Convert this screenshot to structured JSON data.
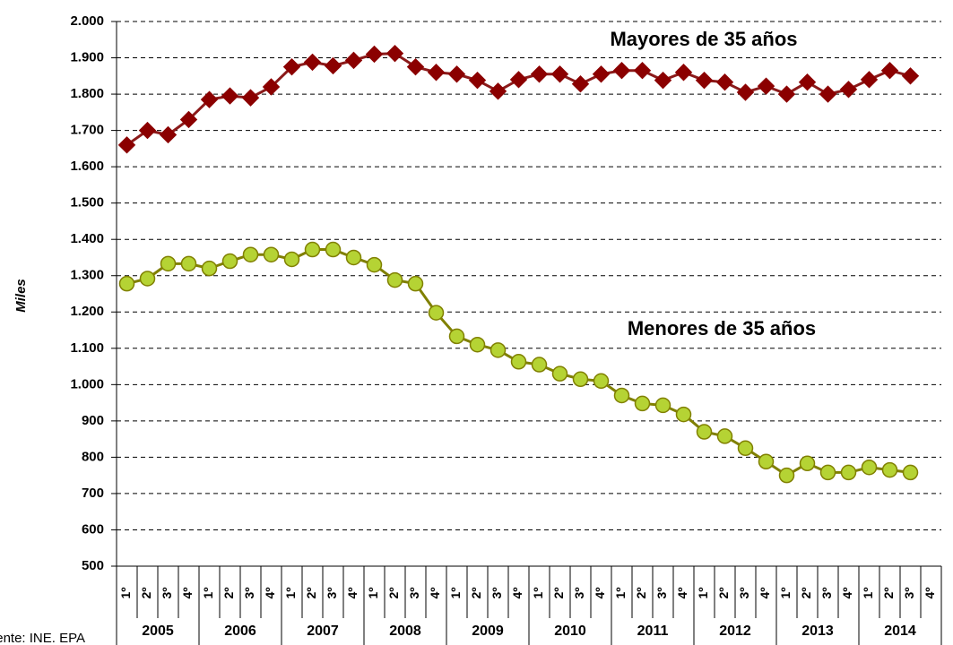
{
  "chart_data": {
    "type": "line",
    "y_label": "Miles",
    "source": "Fuente: INE. EPA",
    "categories": [
      "1º",
      "2º",
      "3º",
      "4º",
      "1º",
      "2º",
      "3º",
      "4º",
      "1º",
      "2º",
      "3º",
      "4º",
      "1º",
      "2º",
      "3º",
      "4º",
      "1º",
      "2º",
      "3º",
      "4º",
      "1º",
      "2º",
      "3º",
      "4º",
      "1º",
      "2º",
      "3º",
      "4º",
      "1º",
      "2º",
      "3º",
      "4º",
      "1º",
      "2º",
      "3º",
      "4º",
      "1º",
      "2º",
      "3º",
      "4º"
    ],
    "years": [
      "2005",
      "2006",
      "2007",
      "2008",
      "2009",
      "2010",
      "2011",
      "2012",
      "2013",
      "2014"
    ],
    "series": [
      {
        "name": "Mayores de 35 años",
        "color": "#8b1a1a",
        "marker": "diamond",
        "marker_color": "#8b0000",
        "values": [
          1660,
          1700,
          1688,
          1730,
          1785,
          1795,
          1790,
          1820,
          1875,
          1888,
          1878,
          1893,
          1910,
          1912,
          1875,
          1860,
          1855,
          1838,
          1808,
          1840,
          1855,
          1855,
          1828,
          1855,
          1865,
          1865,
          1838,
          1860,
          1838,
          1833,
          1805,
          1822,
          1800,
          1833,
          1800,
          1813,
          1840,
          1865,
          1850,
          null
        ]
      },
      {
        "name": "Menores de 35 años",
        "color": "#808000",
        "marker": "circle",
        "marker_color": "#b5d334",
        "values": [
          1278,
          1292,
          1333,
          1333,
          1320,
          1340,
          1358,
          1358,
          1345,
          1372,
          1372,
          1350,
          1330,
          1288,
          1278,
          1198,
          1133,
          1110,
          1095,
          1063,
          1055,
          1030,
          1015,
          1010,
          970,
          948,
          943,
          918,
          870,
          858,
          825,
          788,
          750,
          783,
          758,
          758,
          772,
          765,
          758,
          null
        ]
      }
    ],
    "ylim": [
      500,
      2000
    ],
    "yticks": [
      500,
      600,
      700,
      800,
      900,
      {
        "value": 1000,
        "label": "1.000"
      },
      {
        "value": 1100,
        "label": "1.100"
      },
      {
        "value": 1200,
        "label": "1.200"
      },
      {
        "value": 1300,
        "label": "1.300"
      },
      {
        "value": 1400,
        "label": "1.400"
      },
      {
        "value": 1500,
        "label": "1.500"
      },
      {
        "value": 1600,
        "label": "1.600"
      },
      {
        "value": 1700,
        "label": "1.700"
      },
      {
        "value": 1800,
        "label": "1.800"
      },
      {
        "value": 1900,
        "label": "1.900"
      },
      {
        "value": 2000,
        "label": "2.000"
      }
    ],
    "grid": true
  }
}
